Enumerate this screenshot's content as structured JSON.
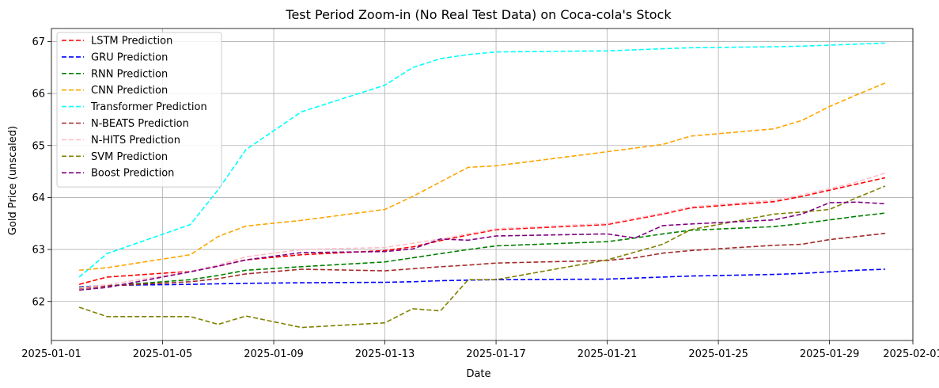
{
  "chart_data": {
    "type": "line",
    "title": "Test Period Zoom-in (No Real Test Data) on Coca-cola's Stock",
    "xlabel": "Date",
    "ylabel": "Gold Price (unscaled)",
    "x_start": "2025-01-02",
    "x": [
      "2025-01-02",
      "2025-01-03",
      "2025-01-06",
      "2025-01-07",
      "2025-01-08",
      "2025-01-10",
      "2025-01-13",
      "2025-01-14",
      "2025-01-15",
      "2025-01-16",
      "2025-01-17",
      "2025-01-21",
      "2025-01-22",
      "2025-01-23",
      "2025-01-24",
      "2025-01-27",
      "2025-01-28",
      "2025-01-29",
      "2025-01-30",
      "2025-01-31"
    ],
    "xlim": [
      "2025-01-01",
      "2025-02-01"
    ],
    "xticks": [
      "2025-01-01",
      "2025-01-05",
      "2025-01-09",
      "2025-01-13",
      "2025-01-17",
      "2025-01-21",
      "2025-01-25",
      "2025-01-29",
      "2025-02-01"
    ],
    "ylim": [
      61.25,
      67.25
    ],
    "yticks": [
      62,
      63,
      64,
      65,
      66,
      67
    ],
    "grid": true,
    "legend_position": "top-left",
    "series": [
      {
        "name": "LSTM Prediction",
        "color": "#ff0000",
        "values": [
          62.33,
          62.47,
          62.58,
          62.68,
          62.8,
          62.9,
          62.98,
          63.05,
          63.17,
          63.28,
          63.38,
          63.48,
          63.58,
          63.68,
          63.8,
          63.92,
          64.02,
          64.14,
          64.26,
          64.38
        ]
      },
      {
        "name": "GRU Prediction",
        "color": "#0000ff",
        "values": [
          62.28,
          62.31,
          62.33,
          62.34,
          62.35,
          62.36,
          62.37,
          62.38,
          62.4,
          62.41,
          62.42,
          62.43,
          62.45,
          62.47,
          62.49,
          62.52,
          62.54,
          62.57,
          62.6,
          62.62
        ]
      },
      {
        "name": "RNN Prediction",
        "color": "#008000",
        "values": [
          62.27,
          62.3,
          62.42,
          62.5,
          62.6,
          62.67,
          62.76,
          62.84,
          62.92,
          63.0,
          63.07,
          63.15,
          63.22,
          63.3,
          63.37,
          63.44,
          63.5,
          63.57,
          63.64,
          63.7
        ]
      },
      {
        "name": "CNN Prediction",
        "color": "#ffa500",
        "values": [
          62.6,
          62.65,
          62.9,
          63.25,
          63.45,
          63.56,
          63.77,
          64.02,
          64.3,
          64.58,
          64.61,
          64.88,
          64.95,
          65.02,
          65.18,
          65.32,
          65.48,
          65.75,
          65.98,
          66.2
        ]
      },
      {
        "name": "Transformer Prediction",
        "color": "#00ffff",
        "values": [
          62.47,
          62.92,
          63.48,
          64.15,
          64.92,
          65.65,
          66.16,
          66.5,
          66.67,
          66.75,
          66.8,
          66.82,
          66.84,
          66.86,
          66.88,
          66.9,
          66.91,
          66.93,
          66.95,
          66.97
        ]
      },
      {
        "name": "N-BEATS Prediction",
        "color": "#a52a2a",
        "values": [
          62.25,
          62.3,
          62.38,
          62.44,
          62.53,
          62.62,
          62.59,
          62.63,
          62.67,
          62.7,
          62.74,
          62.79,
          62.84,
          62.93,
          62.98,
          63.08,
          63.1,
          63.19,
          63.25,
          63.31
        ]
      },
      {
        "name": "N-HITS Prediction",
        "color": "#ffc0cb",
        "values": [
          62.26,
          62.32,
          62.58,
          62.7,
          62.86,
          63.0,
          63.04,
          63.12,
          63.2,
          63.3,
          63.4,
          63.5,
          63.6,
          63.7,
          63.82,
          63.95,
          64.05,
          64.17,
          64.3,
          64.47
        ]
      },
      {
        "name": "SVM Prediction",
        "color": "#808000",
        "values": [
          61.89,
          61.71,
          61.71,
          61.56,
          61.72,
          61.5,
          61.59,
          61.86,
          61.82,
          62.42,
          62.42,
          62.8,
          62.95,
          63.1,
          63.38,
          63.68,
          63.72,
          63.77,
          64.0,
          64.22
        ]
      },
      {
        "name": "Boost Prediction",
        "color": "#800080",
        "values": [
          62.22,
          62.27,
          62.57,
          62.68,
          62.8,
          62.94,
          62.96,
          63.01,
          63.2,
          63.18,
          63.26,
          63.3,
          63.22,
          63.46,
          63.49,
          63.57,
          63.68,
          63.9,
          63.91,
          63.88
        ]
      }
    ]
  }
}
